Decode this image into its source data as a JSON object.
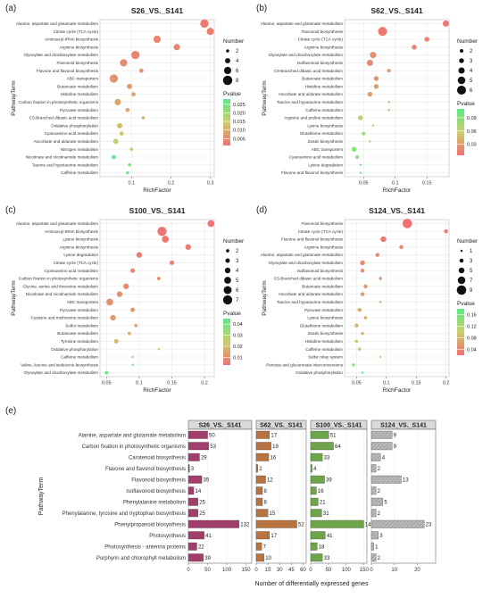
{
  "colors": {
    "pvalue_high": "#5de88a",
    "pvalue_mid": "#c9cf6a",
    "pvalue_low": "#f26f72",
    "bar_s26": "#a23e6c",
    "bar_s62": "#b87341",
    "bar_s100": "#6ea54a",
    "bar_s124": "#aaaaaa",
    "grid": "#e8e8e8",
    "panel_bg": "#ffffff"
  },
  "chart_data": [
    {
      "panel": "(a)",
      "type": "scatter",
      "title": "S26_VS._S141",
      "xlabel": "RichFactor",
      "ylabel": "PathwayTerm",
      "xlim": [
        0.02,
        0.31
      ],
      "xticks": [
        0.1,
        0.2,
        0.3
      ],
      "legend_size": {
        "title": "Number",
        "labels": [
          "2",
          "4",
          "6",
          "8"
        ],
        "values": [
          2,
          4,
          6,
          8
        ],
        "range": [
          1,
          9
        ]
      },
      "legend_color": {
        "title": "Pvalue",
        "labels": [
          "0.025",
          "0.020",
          "0.015",
          "0.010",
          "0.005"
        ],
        "values": [
          0.025,
          0.02,
          0.015,
          0.01,
          0.005
        ],
        "range": [
          0.001,
          0.028
        ]
      },
      "points": [
        {
          "term": "Alanine, aspartate and glutamate metabolism",
          "rf": 0.285,
          "num": 7,
          "p": 0.002
        },
        {
          "term": "Citrate cycle (TCA cycle)",
          "rf": 0.3,
          "num": 6,
          "p": 0.003
        },
        {
          "term": "Aminoacyl-tRNA biosynthesis",
          "rf": 0.165,
          "num": 6,
          "p": 0.004
        },
        {
          "term": "Arginine biosynthesis",
          "rf": 0.215,
          "num": 5,
          "p": 0.004
        },
        {
          "term": "Glyoxylate and dicarboxylate metabolism",
          "rf": 0.11,
          "num": 7,
          "p": 0.004
        },
        {
          "term": "Flavonoid biosynthesis",
          "rf": 0.08,
          "num": 6,
          "p": 0.005
        },
        {
          "term": "Flavone and flavonol biosynthesis",
          "rf": 0.125,
          "num": 3,
          "p": 0.006
        },
        {
          "term": "ABC transporters",
          "rf": 0.055,
          "num": 7,
          "p": 0.006
        },
        {
          "term": "Butanoate metabolism",
          "rf": 0.095,
          "num": 4,
          "p": 0.007
        },
        {
          "term": "Histidine metabolism",
          "rf": 0.105,
          "num": 3,
          "p": 0.008
        },
        {
          "term": "Carbon fixation in photosynthetic organisms",
          "rf": 0.065,
          "num": 5,
          "p": 0.008
        },
        {
          "term": "Pyruvate metabolism",
          "rf": 0.09,
          "num": 3,
          "p": 0.009
        },
        {
          "term": "C5-Branched dibasic acid metabolism",
          "rf": 0.13,
          "num": 2,
          "p": 0.01
        },
        {
          "term": "Oxidative phosphorylation",
          "rf": 0.07,
          "num": 4,
          "p": 0.012
        },
        {
          "term": "Cyanoamino acid metabolism",
          "rf": 0.075,
          "num": 3,
          "p": 0.013
        },
        {
          "term": "Ascorbate and aldarate metabolism",
          "rf": 0.06,
          "num": 4,
          "p": 0.016
        },
        {
          "term": "Nitrogen metabolism",
          "rf": 0.1,
          "num": 2,
          "p": 0.018
        },
        {
          "term": "Nicotinate and nicotinamide metabolism",
          "rf": 0.055,
          "num": 3,
          "p": 0.026
        },
        {
          "term": "Taurine and hypotaurine metabolism",
          "rf": 0.095,
          "num": 2,
          "p": 0.024
        },
        {
          "term": "Caffeine metabolism",
          "rf": 0.09,
          "num": 2,
          "p": 0.024
        }
      ]
    },
    {
      "panel": "(b)",
      "type": "scatter",
      "title": "S62_VS._S141",
      "xlabel": "RichFactor",
      "ylabel": "PathwayTerm",
      "xlim": [
        0.02,
        0.185
      ],
      "xticks": [
        0.05,
        0.1,
        0.15
      ],
      "legend_size": {
        "title": "Number",
        "labels": [
          "2",
          "3",
          "4",
          "5",
          "6"
        ],
        "values": [
          2,
          3,
          4,
          5,
          6
        ],
        "range": [
          1,
          7
        ]
      },
      "legend_color": {
        "title": "Pvalue",
        "labels": [
          "0.09",
          "0.06",
          "0.03"
        ],
        "values": [
          0.09,
          0.06,
          0.03
        ],
        "range": [
          0.005,
          0.11
        ]
      },
      "points": [
        {
          "term": "Alanine, aspartate and glutamate metabolism",
          "rf": 0.18,
          "num": 4,
          "p": 0.01
        },
        {
          "term": "Flavonoid biosynthesis",
          "rf": 0.08,
          "num": 6,
          "p": 0.01
        },
        {
          "term": "Citrate cycle (TCA cycle)",
          "rf": 0.15,
          "num": 3,
          "p": 0.015
        },
        {
          "term": "Arginine biosynthesis",
          "rf": 0.13,
          "num": 3,
          "p": 0.015
        },
        {
          "term": "Glyoxylate and dicarboxylate metabolism",
          "rf": 0.065,
          "num": 4,
          "p": 0.02
        },
        {
          "term": "Isoflavonoid biosynthesis",
          "rf": 0.06,
          "num": 4,
          "p": 0.02
        },
        {
          "term": "C5-Branched dibasic acid metabolism",
          "rf": 0.09,
          "num": 2,
          "p": 0.025
        },
        {
          "term": "Butanoate metabolism",
          "rf": 0.07,
          "num": 3,
          "p": 0.025
        },
        {
          "term": "Histidine metabolism",
          "rf": 0.07,
          "num": 3,
          "p": 0.03
        },
        {
          "term": "Ascorbate and aldarate metabolism",
          "rf": 0.06,
          "num": 3,
          "p": 0.03
        },
        {
          "term": "Taurine and hypotaurine metabolism",
          "rf": 0.09,
          "num": 1,
          "p": 0.035
        },
        {
          "term": "Caffeine metabolism",
          "rf": 0.09,
          "num": 1,
          "p": 0.035
        },
        {
          "term": "Arginine and proline metabolism",
          "rf": 0.045,
          "num": 3,
          "p": 0.06
        },
        {
          "term": "Lysine biosynthesis",
          "rf": 0.065,
          "num": 1,
          "p": 0.07
        },
        {
          "term": "Glutathione metabolism",
          "rf": 0.05,
          "num": 2,
          "p": 0.075
        },
        {
          "term": "Zeatin biosynthesis",
          "rf": 0.06,
          "num": 1,
          "p": 0.08
        },
        {
          "term": "ABC transporters",
          "rf": 0.035,
          "num": 3,
          "p": 0.09
        },
        {
          "term": "Cyanoamino acid metabolism",
          "rf": 0.04,
          "num": 2,
          "p": 0.09
        },
        {
          "term": "Lysine degradation",
          "rf": 0.045,
          "num": 1,
          "p": 0.095
        },
        {
          "term": "Flavone and flavonol biosynthesis",
          "rf": 0.045,
          "num": 1,
          "p": 0.1
        }
      ]
    },
    {
      "panel": "(c)",
      "type": "scatter",
      "title": "S100_VS._S141",
      "xlabel": "RichFactor",
      "ylabel": "PathwayTerm",
      "xlim": [
        0.04,
        0.215
      ],
      "xticks": [
        0.05,
        0.1,
        0.15,
        0.2
      ],
      "legend_size": {
        "title": "Number",
        "labels": [
          "2",
          "3",
          "4",
          "5",
          "6",
          "7"
        ],
        "values": [
          2,
          3,
          4,
          5,
          6,
          7
        ],
        "range": [
          1,
          8
        ]
      },
      "legend_color": {
        "title": "Pvalue",
        "labels": [
          "0.04",
          "0.03",
          "0.02",
          "0.01"
        ],
        "values": [
          0.04,
          0.03,
          0.02,
          0.01
        ],
        "range": [
          0.003,
          0.045
        ]
      },
      "points": [
        {
          "term": "Alanine, aspartate and glutamate metabolism",
          "rf": 0.21,
          "num": 5,
          "p": 0.003
        },
        {
          "term": "Aminoacyl-tRNA biosynthesis",
          "rf": 0.135,
          "num": 7,
          "p": 0.004
        },
        {
          "term": "Lysine biosynthesis",
          "rf": 0.14,
          "num": 5,
          "p": 0.005
        },
        {
          "term": "Arginine biosynthesis",
          "rf": 0.175,
          "num": 4,
          "p": 0.005
        },
        {
          "term": "Lysine degradation",
          "rf": 0.1,
          "num": 4,
          "p": 0.006
        },
        {
          "term": "Citrate cycle (TCA cycle)",
          "rf": 0.15,
          "num": 3,
          "p": 0.007
        },
        {
          "term": "Cyanoamino acid metabolism",
          "rf": 0.09,
          "num": 3,
          "p": 0.008
        },
        {
          "term": "Carbon fixation in photosynthetic organisms",
          "rf": 0.13,
          "num": 2,
          "p": 0.008
        },
        {
          "term": "Glycine, serine and threonine metabolism",
          "rf": 0.08,
          "num": 4,
          "p": 0.009
        },
        {
          "term": "Nicotinate and nicotinamide metabolism",
          "rf": 0.07,
          "num": 4,
          "p": 0.01
        },
        {
          "term": "ABC transporters",
          "rf": 0.055,
          "num": 5,
          "p": 0.01
        },
        {
          "term": "Pyruvate metabolism",
          "rf": 0.09,
          "num": 3,
          "p": 0.012
        },
        {
          "term": "Cysteine and methionine metabolism",
          "rf": 0.06,
          "num": 4,
          "p": 0.013
        },
        {
          "term": "Sulfur metabolism",
          "rf": 0.095,
          "num": 2,
          "p": 0.015
        },
        {
          "term": "Butanoate metabolism",
          "rf": 0.085,
          "num": 2,
          "p": 0.018
        },
        {
          "term": "Tyrosine metabolism",
          "rf": 0.065,
          "num": 3,
          "p": 0.02
        },
        {
          "term": "Oxidative phosphorylation",
          "rf": 0.13,
          "num": 1,
          "p": 0.03
        },
        {
          "term": "Caffeine metabolism",
          "rf": 0.09,
          "num": 1,
          "p": 0.035
        },
        {
          "term": "Valine, leucine and isoleucine biosynthesis",
          "rf": 0.09,
          "num": 1,
          "p": 0.04
        },
        {
          "term": "Glyoxylate and dicarboxylate metabolism",
          "rf": 0.05,
          "num": 2,
          "p": 0.045
        }
      ]
    },
    {
      "panel": "(d)",
      "type": "scatter",
      "title": "S124_VS._S141",
      "xlabel": "RichFactor",
      "ylabel": "PathwayTerm",
      "xlim": [
        0.03,
        0.205
      ],
      "xticks": [
        0.05,
        0.1,
        0.15,
        0.2
      ],
      "legend_size": {
        "title": "Number",
        "labels": [
          "1",
          "3",
          "5",
          "7",
          "9"
        ],
        "values": [
          1,
          3,
          5,
          7,
          9
        ],
        "range": [
          1,
          10
        ]
      },
      "legend_color": {
        "title": "Pvalue",
        "labels": [
          "0.16",
          "0.12",
          "0.08",
          "0.04"
        ],
        "values": [
          0.16,
          0.12,
          0.08,
          0.04
        ],
        "range": [
          0.02,
          0.18
        ]
      },
      "points": [
        {
          "term": "Flavonoid biosynthesis",
          "rf": 0.135,
          "num": 9,
          "p": 0.02
        },
        {
          "term": "Citrate cycle (TCA cycle)",
          "rf": 0.2,
          "num": 3,
          "p": 0.03
        },
        {
          "term": "Flavone and flavonol biosynthesis",
          "rf": 0.095,
          "num": 5,
          "p": 0.03
        },
        {
          "term": "Arginine biosynthesis",
          "rf": 0.125,
          "num": 3,
          "p": 0.04
        },
        {
          "term": "Alanine, aspartate and glutamate metabolism",
          "rf": 0.085,
          "num": 3,
          "p": 0.04
        },
        {
          "term": "Glyoxylate and dicarboxylate metabolism",
          "rf": 0.06,
          "num": 4,
          "p": 0.045
        },
        {
          "term": "Isoflavonoid biosynthesis",
          "rf": 0.06,
          "num": 3,
          "p": 0.05
        },
        {
          "term": "C5-Branched dibasic acid metabolism",
          "rf": 0.09,
          "num": 2,
          "p": 0.05
        },
        {
          "term": "Butanoate metabolism",
          "rf": 0.065,
          "num": 3,
          "p": 0.055
        },
        {
          "term": "Ascorbate and aldarate metabolism",
          "rf": 0.06,
          "num": 3,
          "p": 0.06
        },
        {
          "term": "Taurine and hypotaurine metabolism",
          "rf": 0.09,
          "num": 1,
          "p": 0.06
        },
        {
          "term": "Pyruvate metabolism",
          "rf": 0.055,
          "num": 3,
          "p": 0.07
        },
        {
          "term": "Lysine biosynthesis",
          "rf": 0.065,
          "num": 2,
          "p": 0.07
        },
        {
          "term": "Glutathione metabolism",
          "rf": 0.05,
          "num": 3,
          "p": 0.08
        },
        {
          "term": "Zeatin biosynthesis",
          "rf": 0.06,
          "num": 2,
          "p": 0.08
        },
        {
          "term": "Histidine metabolism",
          "rf": 0.05,
          "num": 2,
          "p": 0.085
        },
        {
          "term": "Caffeine metabolism",
          "rf": 0.055,
          "num": 2,
          "p": 0.09
        },
        {
          "term": "Sulfur relay system",
          "rf": 0.09,
          "num": 1,
          "p": 0.11
        },
        {
          "term": "Pentose and glucuronate interconversions",
          "rf": 0.045,
          "num": 2,
          "p": 0.14
        },
        {
          "term": "Oxidative phosphorylation",
          "rf": 0.06,
          "num": 1,
          "p": 0.17
        }
      ]
    },
    {
      "panel": "(e)",
      "type": "bar",
      "orientation": "horizontal",
      "xlabel": "Number of differentially expressed genes",
      "ylabel": "PathwayTerm",
      "categories": [
        "Alanine, aspartate and glutamate metabolism",
        "Carbon fixation in photosynthetic organisms",
        "Carotenoid biosynthesis",
        "Flavone and flavonol biosynthesis",
        "Flavonoid biosynthesis",
        "Isoflavonoid biosynthesis",
        "Phenylalanine metabolism",
        "Phenylalanine, tyrosine and tryptophan biosynthesis",
        "Phenylpropanoid biosynthesis",
        "Photosynthesis",
        "Photosynthesis - antenna proteins",
        "Porphyrin and chlorophyll metabolism"
      ],
      "series": [
        {
          "name": "S26_VS._S141",
          "values": [
            50,
            53,
            29,
            3,
            35,
            14,
            25,
            25,
            132,
            41,
            22,
            39
          ],
          "xlim": [
            0,
            165
          ],
          "xticks": [
            0,
            50,
            100,
            150
          ]
        },
        {
          "name": "S62_VS._S141",
          "values": [
            17,
            19,
            16,
            2,
            12,
            8,
            8,
            15,
            52,
            17,
            7,
            10
          ],
          "xlim": [
            0,
            64
          ],
          "xticks": [
            0,
            15,
            30,
            45,
            60
          ]
        },
        {
          "name": "S100_VS._S141",
          "values": [
            51,
            64,
            33,
            4,
            39,
            16,
            21,
            31,
            149,
            41,
            18,
            33
          ],
          "xlim": [
            0,
            158
          ],
          "xticks": [
            0,
            50,
            100,
            150
          ]
        },
        {
          "name": "S124_VS._S141",
          "values": [
            9,
            9,
            4,
            2,
            13,
            2,
            5,
            2,
            23,
            3,
            1,
            2
          ],
          "xlim": [
            0,
            28
          ],
          "xticks": [
            0,
            10,
            20
          ]
        }
      ]
    }
  ]
}
